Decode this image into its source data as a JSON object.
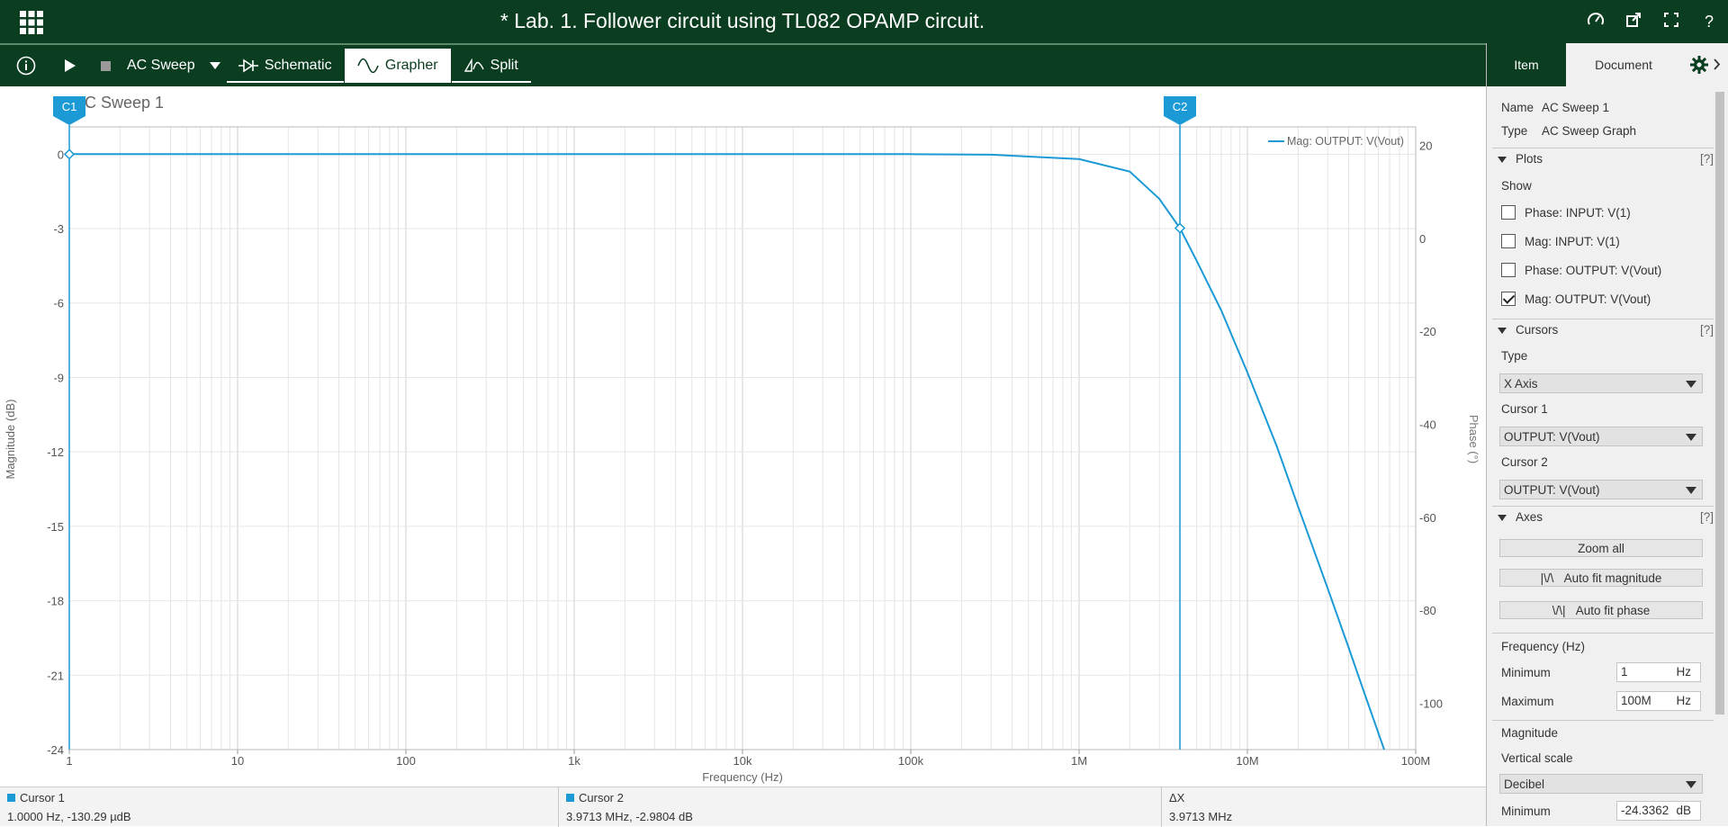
{
  "titlebar": {
    "title": "* Lab. 1. Follower circuit using TL082 OPAMP circuit.",
    "icons": [
      "apps-grid-icon",
      "speed-icon",
      "open-external-icon",
      "fullscreen-icon",
      "help-icon"
    ],
    "help": "?"
  },
  "toolbar": {
    "info_icon": "info-icon",
    "analysis": "AC Sweep",
    "tabs": [
      {
        "label": "Schematic",
        "icon": "diode-icon"
      },
      {
        "label": "Grapher",
        "icon": "sine-wave-icon"
      },
      {
        "label": "Split",
        "icon": "split-icon"
      }
    ],
    "active_tab": "Grapher"
  },
  "chart_data": {
    "type": "line",
    "title": "AC Sweep 1",
    "xlabel": "Frequency (Hz)",
    "ylabel": "Magnitude (dB)",
    "y2label": "Phase (°)",
    "xscale": "log",
    "xlim": [
      1,
      100000000
    ],
    "ylim": [
      -24,
      1.1
    ],
    "y2lim": [
      -110,
      24
    ],
    "x_ticks": [
      "1",
      "10",
      "100",
      "1k",
      "10k",
      "100k",
      "1M",
      "10M",
      "100M"
    ],
    "y_ticks": [
      "0",
      "-3",
      "-6",
      "-9",
      "-12",
      "-15",
      "-18",
      "-21",
      "-24"
    ],
    "y2_ticks": [
      "20",
      "0",
      "-20",
      "-40",
      "-60",
      "-80",
      "-100"
    ],
    "legend": "top-right",
    "grid": true,
    "series": [
      {
        "name": "Mag: OUTPUT: V(Vout)",
        "color": "#1b9ad6",
        "x": [
          1,
          10,
          100,
          1000,
          10000,
          100000,
          300000,
          1000000,
          2000000,
          3000000,
          3971300,
          5000000,
          7000000,
          10000000,
          15000000,
          20000000,
          30000000,
          40000000,
          50000000,
          65000000
        ],
        "y": [
          0,
          0,
          0,
          0,
          0,
          0,
          -0.02,
          -0.2,
          -0.7,
          -1.8,
          -2.98,
          -4.3,
          -6.3,
          -8.8,
          -11.8,
          -14.2,
          -17.5,
          -19.9,
          -21.8,
          -24.0
        ]
      }
    ],
    "cursors": [
      {
        "label": "C1",
        "x": 1
      },
      {
        "label": "C2",
        "x": 3971300
      }
    ]
  },
  "statusbar": {
    "cursor1_label": "Cursor 1",
    "cursor1_value": "1.0000 Hz, -130.29 µdB",
    "cursor2_label": "Cursor 2",
    "cursor2_value": "3.9713 MHz, -2.9804 dB",
    "delta_label": "ΔX",
    "delta_value": "3.9713 MHz"
  },
  "panel": {
    "tabs": [
      "Item",
      "Document"
    ],
    "gear_icon": "gear-icon",
    "name_label": "Name",
    "name_value": "AC Sweep 1",
    "type_label": "Type",
    "type_value": "AC Sweep Graph",
    "plots_header": "Plots",
    "help": "[?]",
    "show_label": "Show",
    "plots": [
      {
        "label": "Phase: INPUT: V(1)",
        "checked": false
      },
      {
        "label": "Mag: INPUT: V(1)",
        "checked": false
      },
      {
        "label": "Phase: OUTPUT: V(Vout)",
        "checked": false
      },
      {
        "label": "Mag: OUTPUT: V(Vout)",
        "checked": true
      }
    ],
    "cursors_header": "Cursors",
    "cursor_type_label": "Type",
    "cursor_type_value": "X Axis",
    "cursor1_label": "Cursor 1",
    "cursor1_value": "OUTPUT: V(Vout)",
    "cursor2_label": "Cursor 2",
    "cursor2_value": "OUTPUT: V(Vout)",
    "axes_header": "Axes",
    "zoom_all": "Zoom all",
    "autofit_mag_icon": "|\\/\\",
    "autofit_mag": "Auto fit magnitude",
    "autofit_phase_icon": "\\/\\|",
    "autofit_phase": "Auto fit phase",
    "freq_header": "Frequency (Hz)",
    "min_label": "Minimum",
    "freq_min": "1",
    "freq_min_unit": "Hz",
    "max_label": "Maximum",
    "freq_max": "100M",
    "freq_max_unit": "Hz",
    "mag_header": "Magnitude",
    "vscale_label": "Vertical scale",
    "vscale_value": "Decibel",
    "mag_min_label": "Minimum",
    "mag_min": "-24.3362",
    "mag_min_unit": "dB"
  }
}
